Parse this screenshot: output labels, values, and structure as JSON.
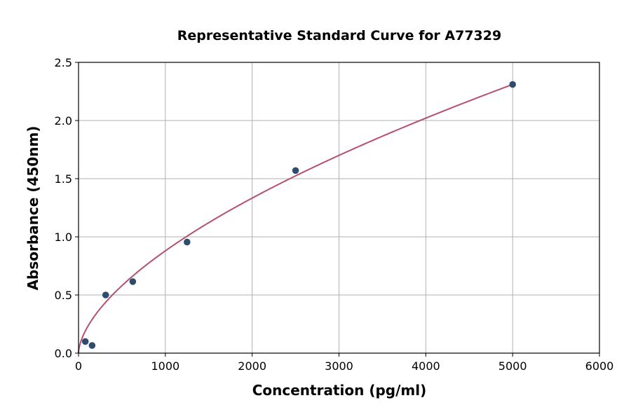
{
  "chart_data": {
    "type": "scatter",
    "title": "Representative Standard Curve for A77329",
    "xlabel": "Concentration (pg/ml)",
    "ylabel": "Absorbance (450nm)",
    "xlim": [
      0,
      6000
    ],
    "ylim": [
      0,
      2.5
    ],
    "xticks": [
      0,
      1000,
      2000,
      3000,
      4000,
      5000,
      6000
    ],
    "yticks": [
      0.0,
      0.5,
      1.0,
      1.5,
      2.0,
      2.5
    ],
    "xtick_labels": [
      "0",
      "1000",
      "2000",
      "3000",
      "4000",
      "5000",
      "6000"
    ],
    "ytick_labels": [
      "0.0",
      "0.5",
      "1.0",
      "1.5",
      "2.0",
      "2.5"
    ],
    "grid": true,
    "points": {
      "x": [
        78.125,
        156.25,
        312.5,
        625,
        1250,
        2500,
        5000
      ],
      "y": [
        0.1,
        0.066,
        0.5,
        0.615,
        0.955,
        1.57,
        2.31
      ]
    },
    "fit_curve": {
      "model": "power",
      "a": 0.01394,
      "b": 0.6
    },
    "colors": {
      "points": "#2e4d6e",
      "curve": "#b5506e",
      "grid": "#b0b0b0"
    }
  }
}
